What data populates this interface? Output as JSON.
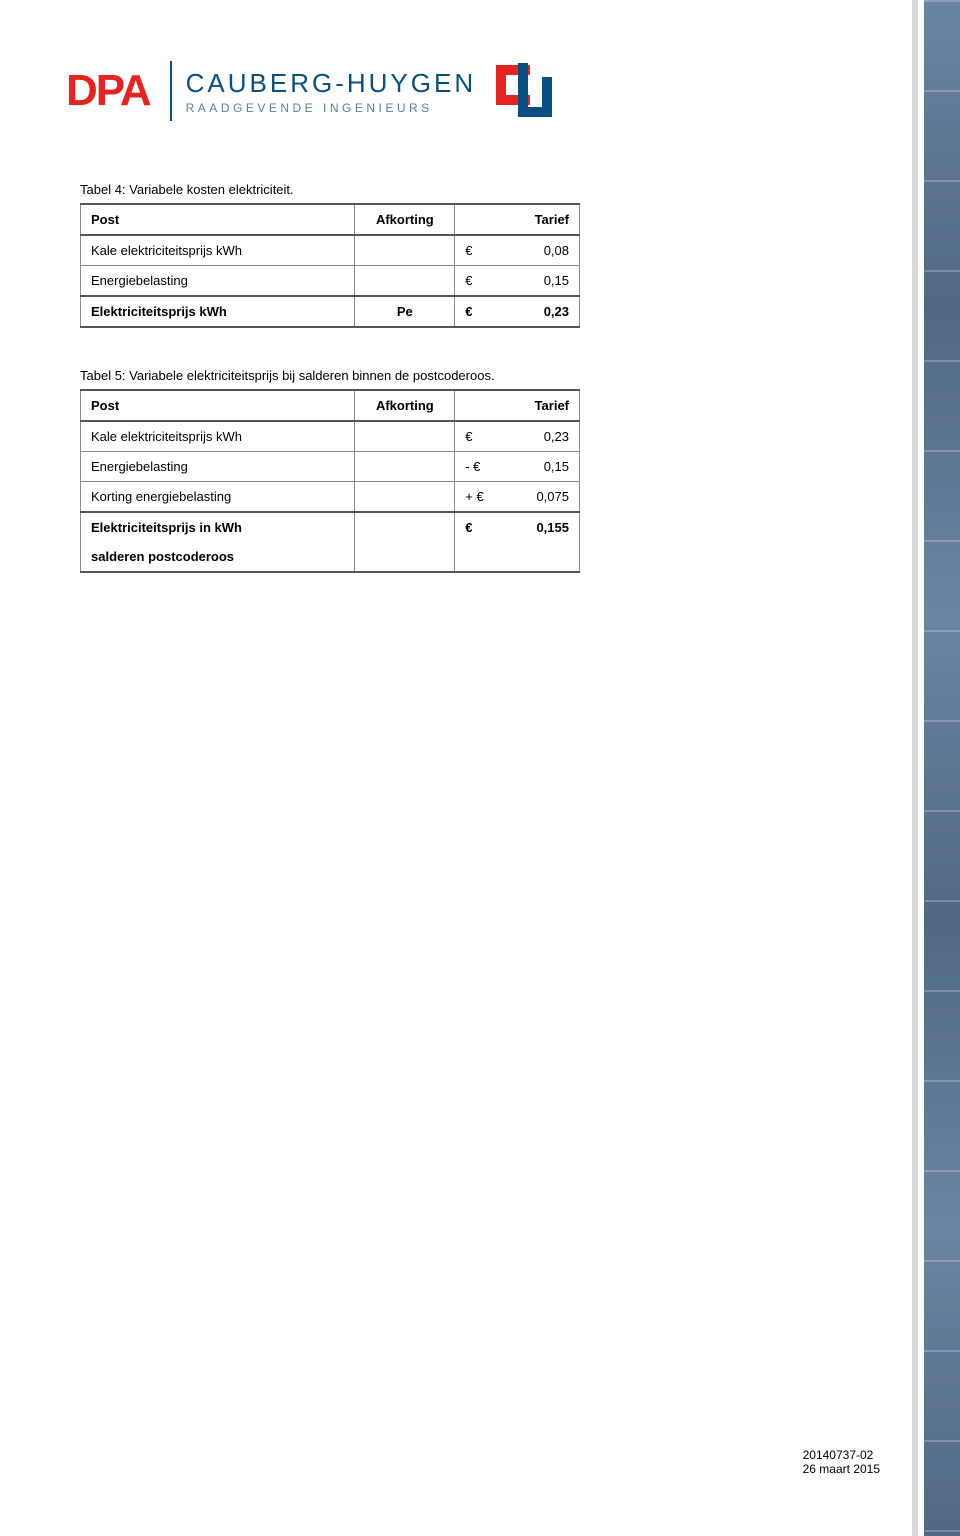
{
  "logo": {
    "dpa": "DPA",
    "ch_main": "CAUBERG-HUYGEN",
    "ch_sub": "RAADGEVENDE INGENIEURS"
  },
  "table4": {
    "caption": "Tabel 4: Variabele kosten elektriciteit.",
    "headers": {
      "post": "Post",
      "afkorting": "Afkorting",
      "tarief": "Tarief"
    },
    "rows": [
      {
        "post": "Kale elektriciteitsprijs kWh",
        "afkorting": "",
        "tarief_sym": "€",
        "tarief_num": "0,08"
      },
      {
        "post": "Energiebelasting",
        "afkorting": "",
        "tarief_sym": "€",
        "tarief_num": "0,15"
      },
      {
        "post": "Elektriciteitsprijs kWh",
        "afkorting": "Pe",
        "tarief_sym": "€",
        "tarief_num": "0,23",
        "total": true
      }
    ]
  },
  "table5": {
    "caption": "Tabel 5: Variabele elektriciteitsprijs bij salderen binnen de postcoderoos.",
    "headers": {
      "post": "Post",
      "afkorting": "Afkorting",
      "tarief": "Tarief"
    },
    "rows": [
      {
        "post": "Kale elektriciteitsprijs kWh",
        "tarief_sym": "€",
        "tarief_num": "0,23"
      },
      {
        "post": "Energiebelasting",
        "tarief_sym": "- €",
        "tarief_num": "0,15"
      },
      {
        "post": "Korting energiebelasting",
        "tarief_sym": "+ €",
        "tarief_num": "0,075"
      },
      {
        "post": "Elektriciteitsprijs in kWh",
        "tarief_sym": "€",
        "tarief_num": "0,155",
        "total": true
      },
      {
        "post": "salderen postcoderoos",
        "tarief_sym": "",
        "tarief_num": "",
        "continuation": true
      }
    ]
  },
  "footer": {
    "ref": "20140737-02",
    "date": "26 maart 2015"
  }
}
